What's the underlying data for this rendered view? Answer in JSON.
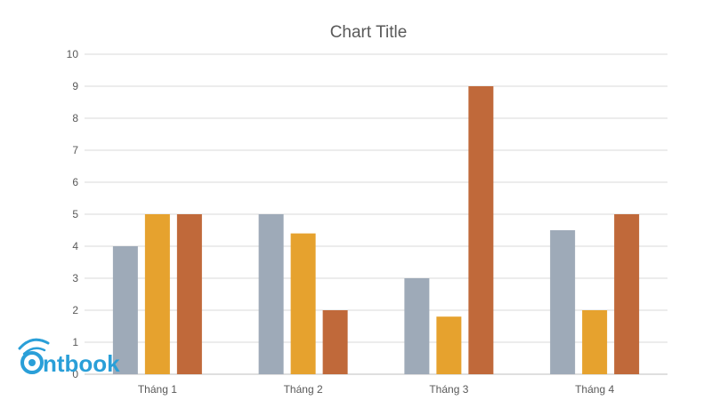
{
  "chart_data": {
    "type": "bar",
    "title": "Chart Title",
    "categories": [
      "Tháng 1",
      "Tháng 2",
      "Tháng 3",
      "Tháng 4"
    ],
    "series": [
      {
        "values": [
          4,
          5,
          3,
          4.5
        ],
        "color": "#9eaab8"
      },
      {
        "values": [
          5,
          4.4,
          1.8,
          2
        ],
        "color": "#e6a22e"
      },
      {
        "values": [
          5,
          2,
          9,
          5
        ],
        "color": "#c0693a"
      }
    ],
    "ylim": [
      0,
      10
    ],
    "yticks": [
      0,
      1,
      2,
      3,
      4,
      5,
      6,
      7,
      8,
      9,
      10
    ],
    "grid": true,
    "legend": "none"
  },
  "watermark": {
    "text": "ntbook",
    "color": "#2a9fd8",
    "icon": "eye-logo-icon"
  }
}
